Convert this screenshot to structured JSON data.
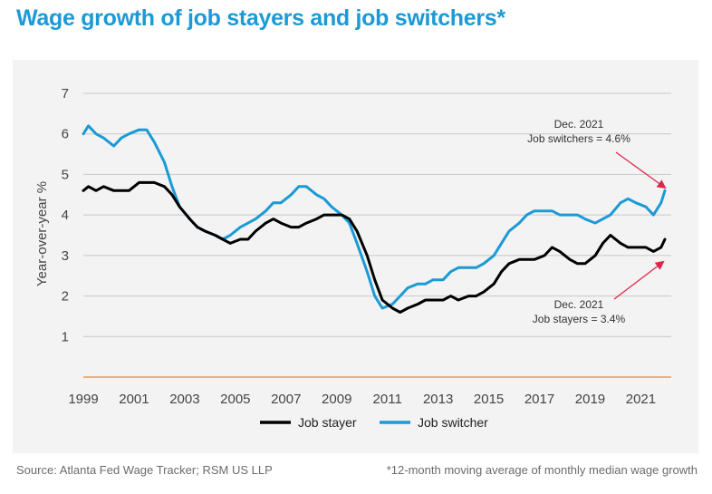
{
  "title": "Wage growth of job stayers and job switchers*",
  "source": "Source: Atlanta Fed Wage Tracker; RSM US LLP",
  "footnote": "*12-month moving average of monthly median wage growth",
  "colors": {
    "stayer": "#000000",
    "switcher": "#1b9ad6",
    "title": "#1b9ad6",
    "baseline": "#e8883a",
    "arrow": "#e0254a",
    "grid": "#c8c8c8"
  },
  "chart_data": {
    "type": "line",
    "ylabel": "Year-over-year %",
    "xlabel": "",
    "xlim": [
      1999,
      2022.2
    ],
    "ylim": [
      0,
      7
    ],
    "yticks": [
      "1",
      "2",
      "3",
      "4",
      "5",
      "6",
      "7"
    ],
    "xticks": [
      "1999",
      "2001",
      "2003",
      "2005",
      "2007",
      "2009",
      "2011",
      "2013",
      "2015",
      "2017",
      "2019",
      "2021"
    ],
    "grid": true,
    "legend_position": "bottom",
    "series": [
      {
        "name": "Job stayer",
        "x": [
          1999.0,
          1999.2,
          1999.5,
          1999.8,
          2000.2,
          2000.5,
          2000.8,
          2001.2,
          2001.5,
          2001.8,
          2002.2,
          2002.5,
          2002.8,
          2003.2,
          2003.5,
          2003.8,
          2004.2,
          2004.5,
          2004.8,
          2005.2,
          2005.5,
          2005.8,
          2006.2,
          2006.5,
          2006.8,
          2007.2,
          2007.5,
          2007.8,
          2008.2,
          2008.5,
          2008.8,
          2009.2,
          2009.5,
          2009.8,
          2010.2,
          2010.5,
          2010.8,
          2011.2,
          2011.5,
          2011.8,
          2012.2,
          2012.5,
          2012.8,
          2013.2,
          2013.5,
          2013.8,
          2014.2,
          2014.5,
          2014.8,
          2015.2,
          2015.5,
          2015.8,
          2016.2,
          2016.5,
          2016.8,
          2017.2,
          2017.5,
          2017.8,
          2018.2,
          2018.5,
          2018.8,
          2019.2,
          2019.5,
          2019.8,
          2020.2,
          2020.5,
          2020.8,
          2021.2,
          2021.5,
          2021.8,
          2021.95
        ],
        "values": [
          4.6,
          4.7,
          4.6,
          4.7,
          4.6,
          4.6,
          4.6,
          4.8,
          4.8,
          4.8,
          4.7,
          4.5,
          4.2,
          3.9,
          3.7,
          3.6,
          3.5,
          3.4,
          3.3,
          3.4,
          3.4,
          3.6,
          3.8,
          3.9,
          3.8,
          3.7,
          3.7,
          3.8,
          3.9,
          4.0,
          4.0,
          4.0,
          3.9,
          3.6,
          3.0,
          2.4,
          1.9,
          1.7,
          1.6,
          1.7,
          1.8,
          1.9,
          1.9,
          1.9,
          2.0,
          1.9,
          2.0,
          2.0,
          2.1,
          2.3,
          2.6,
          2.8,
          2.9,
          2.9,
          2.9,
          3.0,
          3.2,
          3.1,
          2.9,
          2.8,
          2.8,
          3.0,
          3.3,
          3.5,
          3.3,
          3.2,
          3.2,
          3.2,
          3.1,
          3.2,
          3.4
        ]
      },
      {
        "name": "Job switcher",
        "x": [
          1999.0,
          1999.2,
          1999.5,
          1999.8,
          2000.2,
          2000.5,
          2000.8,
          2001.2,
          2001.5,
          2001.8,
          2002.2,
          2002.5,
          2002.8,
          2003.2,
          2003.5,
          2003.8,
          2004.2,
          2004.5,
          2004.8,
          2005.2,
          2005.5,
          2005.8,
          2006.2,
          2006.5,
          2006.8,
          2007.2,
          2007.5,
          2007.8,
          2008.2,
          2008.5,
          2008.8,
          2009.2,
          2009.5,
          2009.8,
          2010.2,
          2010.5,
          2010.8,
          2011.2,
          2011.5,
          2011.8,
          2012.2,
          2012.5,
          2012.8,
          2013.2,
          2013.5,
          2013.8,
          2014.2,
          2014.5,
          2014.8,
          2015.2,
          2015.5,
          2015.8,
          2016.2,
          2016.5,
          2016.8,
          2017.2,
          2017.5,
          2017.8,
          2018.2,
          2018.5,
          2018.8,
          2019.2,
          2019.5,
          2019.8,
          2020.2,
          2020.5,
          2020.8,
          2021.2,
          2021.5,
          2021.8,
          2021.95
        ],
        "values": [
          6.0,
          6.2,
          6.0,
          5.9,
          5.7,
          5.9,
          6.0,
          6.1,
          6.1,
          5.8,
          5.3,
          4.7,
          4.2,
          3.9,
          3.7,
          3.6,
          3.5,
          3.4,
          3.5,
          3.7,
          3.8,
          3.9,
          4.1,
          4.3,
          4.3,
          4.5,
          4.7,
          4.7,
          4.5,
          4.4,
          4.2,
          4.0,
          3.8,
          3.3,
          2.6,
          2.0,
          1.7,
          1.8,
          2.0,
          2.2,
          2.3,
          2.3,
          2.4,
          2.4,
          2.6,
          2.7,
          2.7,
          2.7,
          2.8,
          3.0,
          3.3,
          3.6,
          3.8,
          4.0,
          4.1,
          4.1,
          4.1,
          4.0,
          4.0,
          4.0,
          3.9,
          3.8,
          3.9,
          4.0,
          4.3,
          4.4,
          4.3,
          4.2,
          4.0,
          4.3,
          4.6
        ]
      }
    ],
    "annotations": [
      {
        "line1": "Dec. 2021",
        "line2": "Job switchers = 4.6%",
        "x": 2021.95,
        "y": 4.6
      },
      {
        "line1": "Dec. 2021",
        "line2": "Job stayers = 3.4%",
        "x": 2021.95,
        "y": 3.4
      }
    ]
  }
}
